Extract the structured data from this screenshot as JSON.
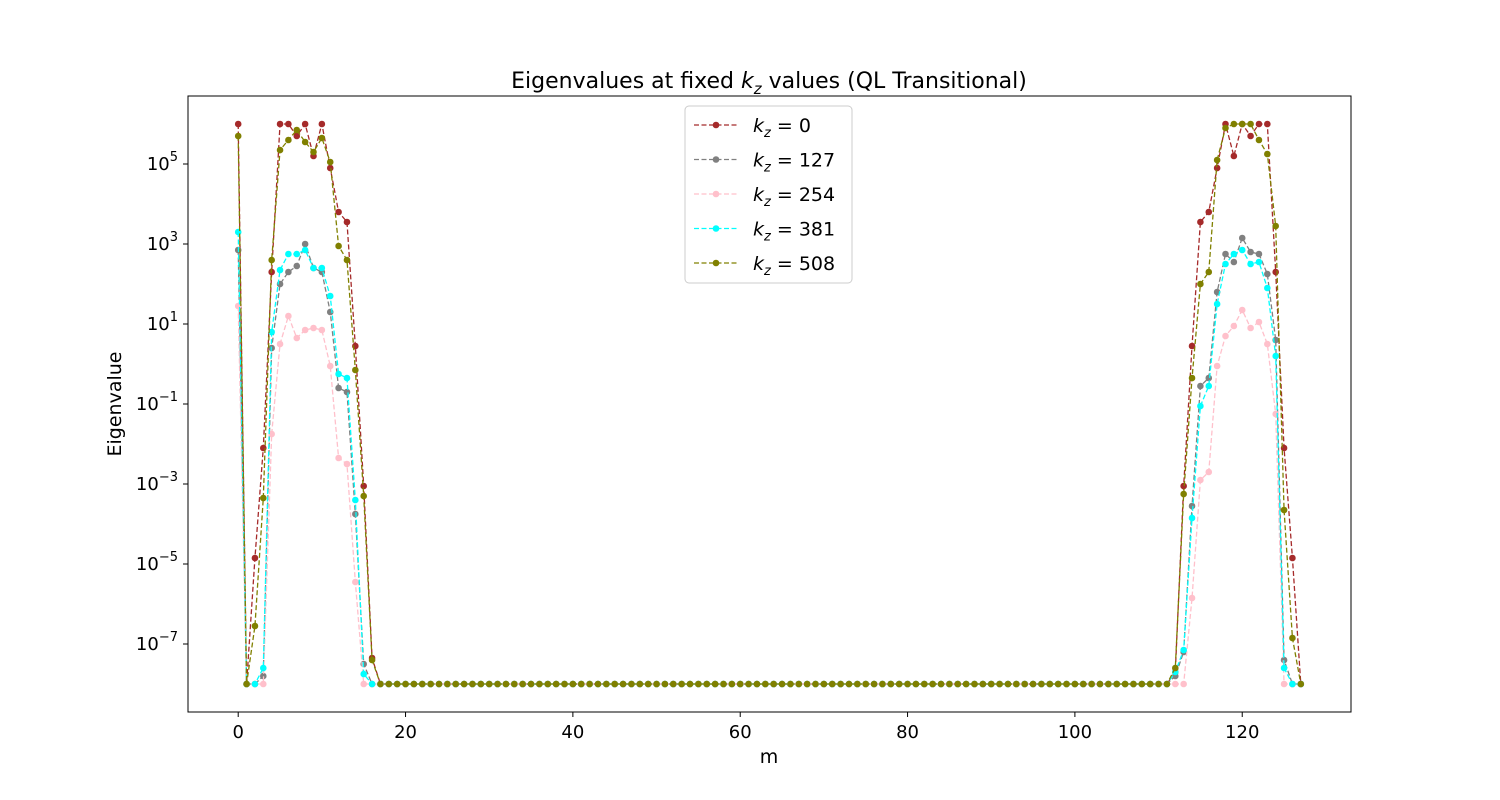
{
  "chart_data": {
    "type": "line",
    "title": {
      "prefix": "Eigenvalues at fixed ",
      "sym": "k",
      "sub": "z",
      "suffix": " values (QL Transitional)"
    },
    "xlabel": "m",
    "ylabel": "Eigenvalue",
    "xlim": [
      -6,
      133
    ],
    "ylim_log10": [
      -8.7,
      6.7
    ],
    "log_scale_y": true,
    "grid": false,
    "xticks": [
      0,
      20,
      40,
      60,
      80,
      100,
      120
    ],
    "ytick_exponents": [
      5,
      3,
      1,
      -1,
      -3,
      -5,
      -7
    ],
    "legend": {
      "placement": "upper center",
      "symbol": "k",
      "subscript": "z"
    },
    "x_values": "integers 0 to 127 (one point per m)",
    "floor_value_log10": -8,
    "series": [
      {
        "name": "k_z = 0",
        "label_value": "= 0",
        "color": "#a52a2a",
        "log10_values": {
          "0": 6,
          "1": -8,
          "2": -4.85,
          "3": -2.1,
          "4": 2.3,
          "5": 6,
          "6": 6,
          "7": 5.7,
          "8": 6,
          "9": 5.2,
          "10": 6,
          "11": 4.9,
          "12": 3.8,
          "13": 3.55,
          "14": 0.45,
          "15": -3.05,
          "16": -7.35,
          "112": -7.7,
          "113": -3.05,
          "114": 0.45,
          "115": 3.55,
          "116": 3.8,
          "117": 4.9,
          "118": 6,
          "119": 5.2,
          "120": 6,
          "121": 5.7,
          "122": 6,
          "123": 6,
          "124": 2.3,
          "125": -2.1,
          "126": -4.85,
          "127": -8
        }
      },
      {
        "name": "k_z = 127",
        "label_value": "= 127",
        "color": "#808080",
        "log10_values": {
          "0": 2.85,
          "1": -8,
          "2": -8,
          "3": -7.8,
          "4": 0.4,
          "5": 2,
          "6": 2.3,
          "7": 2.45,
          "8": 3,
          "9": 2.4,
          "10": 2.3,
          "11": 1.3,
          "12": -0.6,
          "13": -0.7,
          "14": -3.75,
          "15": -7.5,
          "16": -8,
          "112": -7.8,
          "113": -7.2,
          "114": -3.55,
          "115": -0.55,
          "116": -0.35,
          "117": 1.8,
          "118": 2.75,
          "119": 2.55,
          "120": 3.15,
          "121": 2.8,
          "122": 2.75,
          "123": 2.25,
          "124": 0.6,
          "125": -7.4,
          "126": -8,
          "127": -8
        }
      },
      {
        "name": "k_z = 254",
        "label_value": "= 254",
        "color": "#ffc0cb",
        "log10_values": {
          "0": 1.45,
          "1": -8,
          "2": -8,
          "3": -8,
          "4": -1.75,
          "5": 0.5,
          "6": 1.2,
          "7": 0.65,
          "8": 0.85,
          "9": 0.9,
          "10": 0.85,
          "11": -0.05,
          "12": -2.35,
          "13": -2.5,
          "14": -5.45,
          "15": -8,
          "16": -8,
          "112": -8,
          "113": -8,
          "114": -5.85,
          "115": -2.9,
          "116": -2.7,
          "117": -0.05,
          "118": 0.7,
          "119": 0.95,
          "120": 1.35,
          "121": 0.9,
          "122": 1.05,
          "123": 0.5,
          "124": -1.25,
          "125": -8,
          "126": -8,
          "127": -8
        }
      },
      {
        "name": "k_z = 381",
        "label_value": "= 381",
        "color": "#00ffff",
        "log10_values": {
          "0": 3.3,
          "1": -8,
          "2": -8,
          "3": -7.6,
          "4": 0.8,
          "5": 2.35,
          "6": 2.75,
          "7": 2.75,
          "8": 2.85,
          "9": 2.4,
          "10": 2.4,
          "11": 1.7,
          "12": -0.25,
          "13": -0.35,
          "14": -3.4,
          "15": -7.75,
          "16": -8,
          "112": -7.7,
          "113": -7.15,
          "114": -3.85,
          "115": -1.05,
          "116": -0.55,
          "117": 1.5,
          "118": 2.5,
          "119": 2.75,
          "120": 2.85,
          "121": 2.5,
          "122": 2.55,
          "123": 1.9,
          "124": 0.2,
          "125": -7.6,
          "126": -8,
          "127": -8
        }
      },
      {
        "name": "k_z = 508",
        "label_value": "= 508",
        "color": "#808000",
        "log10_values": {
          "0": 5.7,
          "1": -8,
          "2": -6.55,
          "3": -3.35,
          "4": 2.6,
          "5": 5.35,
          "6": 5.6,
          "7": 5.85,
          "8": 5.55,
          "9": 5.3,
          "10": 5.65,
          "11": 5.05,
          "12": 2.95,
          "13": 2.6,
          "14": -0.15,
          "15": -3.3,
          "16": -7.4,
          "112": -7.6,
          "113": -3.25,
          "114": -0.35,
          "115": 2,
          "116": 2.3,
          "117": 5.1,
          "118": 5.9,
          "119": 6,
          "120": 6,
          "121": 6,
          "122": 5.6,
          "123": 5.25,
          "124": 3.45,
          "125": -3.65,
          "126": -6.85,
          "127": -8
        }
      }
    ]
  }
}
